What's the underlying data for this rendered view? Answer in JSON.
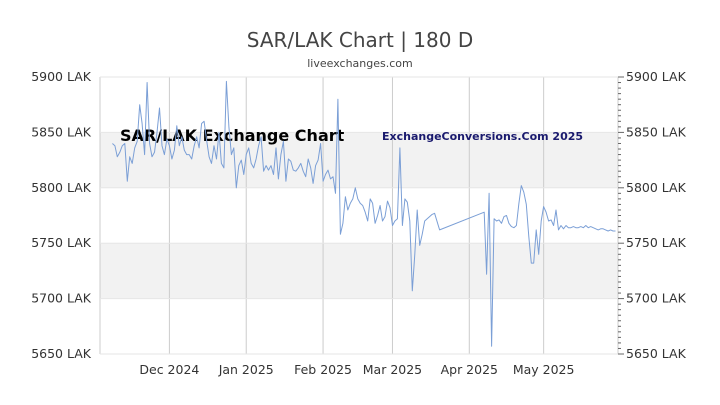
{
  "chart_data": {
    "type": "line",
    "title": "SAR/LAK Chart | 180 D",
    "subtitle": "liveexchanges.com",
    "watermark_left": "SAR/LAK Exchange Chart",
    "watermark_right": "ExchangeConversions.Com 2025",
    "x_tick_labels": [
      "Dec 2024",
      "Jan 2025",
      "Feb 2025",
      "Mar 2025",
      "Apr 2025",
      "May 2025"
    ],
    "x_tick_dates": [
      "2024-12-01",
      "2025-01-01",
      "2025-02-01",
      "2025-03-01",
      "2025-04-01",
      "2025-05-01"
    ],
    "x_range": [
      "2024-11-03",
      "2025-05-31"
    ],
    "y_ticks": [
      5650,
      5700,
      5750,
      5800,
      5850,
      5900
    ],
    "y_tick_labels": [
      "5650 LAK",
      "5700 LAK",
      "5750 LAK",
      "5800 LAK",
      "5850 LAK",
      "5900 LAK"
    ],
    "ylim": [
      5650,
      5900
    ],
    "grid": true,
    "shaded_bands": [
      [
        5800,
        5850
      ],
      [
        5700,
        5750
      ]
    ],
    "line_color": "#7b9fd6",
    "band_color": "#f2f2f2",
    "x": [
      "2024-11-08",
      "2024-11-09",
      "2024-11-10",
      "2024-11-11",
      "2024-11-12",
      "2024-11-13",
      "2024-11-14",
      "2024-11-15",
      "2024-11-16",
      "2024-11-17",
      "2024-11-18",
      "2024-11-19",
      "2024-11-20",
      "2024-11-21",
      "2024-11-22",
      "2024-11-23",
      "2024-11-24",
      "2024-11-25",
      "2024-11-26",
      "2024-11-27",
      "2024-11-28",
      "2024-11-29",
      "2024-11-30",
      "2024-12-01",
      "2024-12-02",
      "2024-12-03",
      "2024-12-04",
      "2024-12-05",
      "2024-12-06",
      "2024-12-07",
      "2024-12-08",
      "2024-12-09",
      "2024-12-10",
      "2024-12-11",
      "2024-12-12",
      "2024-12-13",
      "2024-12-14",
      "2024-12-15",
      "2024-12-16",
      "2024-12-17",
      "2024-12-18",
      "2024-12-19",
      "2024-12-20",
      "2024-12-21",
      "2024-12-22",
      "2024-12-23",
      "2024-12-24",
      "2024-12-25",
      "2024-12-26",
      "2024-12-27",
      "2024-12-28",
      "2024-12-29",
      "2024-12-30",
      "2024-12-31",
      "2025-01-01",
      "2025-01-02",
      "2025-01-03",
      "2025-01-04",
      "2025-01-05",
      "2025-01-06",
      "2025-01-07",
      "2025-01-08",
      "2025-01-09",
      "2025-01-10",
      "2025-01-11",
      "2025-01-12",
      "2025-01-13",
      "2025-01-14",
      "2025-01-15",
      "2025-01-16",
      "2025-01-17",
      "2025-01-18",
      "2025-01-19",
      "2025-01-20",
      "2025-01-21",
      "2025-01-22",
      "2025-01-23",
      "2025-01-24",
      "2025-01-25",
      "2025-01-26",
      "2025-01-27",
      "2025-01-28",
      "2025-01-29",
      "2025-01-30",
      "2025-01-31",
      "2025-02-01",
      "2025-02-02",
      "2025-02-03",
      "2025-02-04",
      "2025-02-05",
      "2025-02-06",
      "2025-02-07",
      "2025-02-08",
      "2025-02-09",
      "2025-02-10",
      "2025-02-11",
      "2025-02-12",
      "2025-02-13",
      "2025-02-14",
      "2025-02-15",
      "2025-02-16",
      "2025-02-17",
      "2025-02-18",
      "2025-02-19",
      "2025-02-20",
      "2025-02-21",
      "2025-02-22",
      "2025-02-23",
      "2025-02-24",
      "2025-02-25",
      "2025-02-26",
      "2025-02-27",
      "2025-02-28",
      "2025-03-01",
      "2025-03-02",
      "2025-03-03",
      "2025-03-04",
      "2025-03-05",
      "2025-03-06",
      "2025-03-07",
      "2025-03-08",
      "2025-03-09",
      "2025-03-10",
      "2025-03-11",
      "2025-03-12",
      "2025-03-13",
      "2025-03-14",
      "2025-03-15",
      "2025-03-16",
      "2025-03-17",
      "2025-03-18",
      "2025-03-20",
      "2025-04-07",
      "2025-04-08",
      "2025-04-09",
      "2025-04-10",
      "2025-04-11",
      "2025-04-12",
      "2025-04-13",
      "2025-04-14",
      "2025-04-15",
      "2025-04-16",
      "2025-04-17",
      "2025-04-18",
      "2025-04-19",
      "2025-04-20",
      "2025-04-21",
      "2025-04-22",
      "2025-04-23",
      "2025-04-24",
      "2025-04-25",
      "2025-04-26",
      "2025-04-27",
      "2025-04-28",
      "2025-04-29",
      "2025-04-30",
      "2025-05-01",
      "2025-05-02",
      "2025-05-03",
      "2025-05-04",
      "2025-05-05",
      "2025-05-06",
      "2025-05-07",
      "2025-05-08",
      "2025-05-09",
      "2025-05-10",
      "2025-05-11",
      "2025-05-12",
      "2025-05-13",
      "2025-05-14",
      "2025-05-15",
      "2025-05-16",
      "2025-05-17",
      "2025-05-18",
      "2025-05-19",
      "2025-05-20",
      "2025-05-21",
      "2025-05-22",
      "2025-05-23",
      "2025-05-24",
      "2025-05-25",
      "2025-05-26",
      "2025-05-27",
      "2025-05-28",
      "2025-05-29",
      "2025-05-30"
    ],
    "y": [
      5840,
      5838,
      5828,
      5832,
      5838,
      5840,
      5806,
      5828,
      5822,
      5836,
      5842,
      5875,
      5858,
      5830,
      5895,
      5840,
      5828,
      5832,
      5850,
      5872,
      5838,
      5830,
      5844,
      5838,
      5826,
      5834,
      5856,
      5838,
      5846,
      5834,
      5830,
      5830,
      5826,
      5838,
      5846,
      5836,
      5858,
      5860,
      5843,
      5828,
      5822,
      5838,
      5826,
      5850,
      5822,
      5818,
      5896,
      5855,
      5830,
      5836,
      5800,
      5820,
      5825,
      5812,
      5830,
      5836,
      5822,
      5818,
      5826,
      5838,
      5846,
      5815,
      5820,
      5816,
      5820,
      5812,
      5836,
      5808,
      5830,
      5842,
      5806,
      5826,
      5824,
      5816,
      5815,
      5818,
      5822,
      5815,
      5810,
      5826,
      5818,
      5804,
      5820,
      5825,
      5840,
      5806,
      5812,
      5816,
      5808,
      5810,
      5795,
      5880,
      5758,
      5768,
      5792,
      5780,
      5786,
      5790,
      5800,
      5790,
      5786,
      5784,
      5778,
      5770,
      5790,
      5786,
      5768,
      5775,
      5784,
      5770,
      5774,
      5788,
      5782,
      5766,
      5770,
      5772,
      5836,
      5766,
      5790,
      5787,
      5770,
      5707,
      5740,
      5780,
      5748,
      5758,
      5770,
      5772,
      5774,
      5776,
      5777,
      5762,
      5778,
      5722,
      5795,
      5657,
      5772,
      5770,
      5771,
      5768,
      5774,
      5775,
      5768,
      5765,
      5764,
      5766,
      5786,
      5802,
      5796,
      5785,
      5756,
      5732,
      5732,
      5762,
      5740,
      5770,
      5783,
      5778,
      5770,
      5771,
      5766,
      5780,
      5762,
      5766,
      5763,
      5766,
      5764,
      5764,
      5765,
      5764,
      5764,
      5765,
      5764,
      5766,
      5764,
      5765,
      5764,
      5763,
      5762,
      5763,
      5763,
      5762,
      5761,
      5762,
      5761,
      5761
    ]
  }
}
